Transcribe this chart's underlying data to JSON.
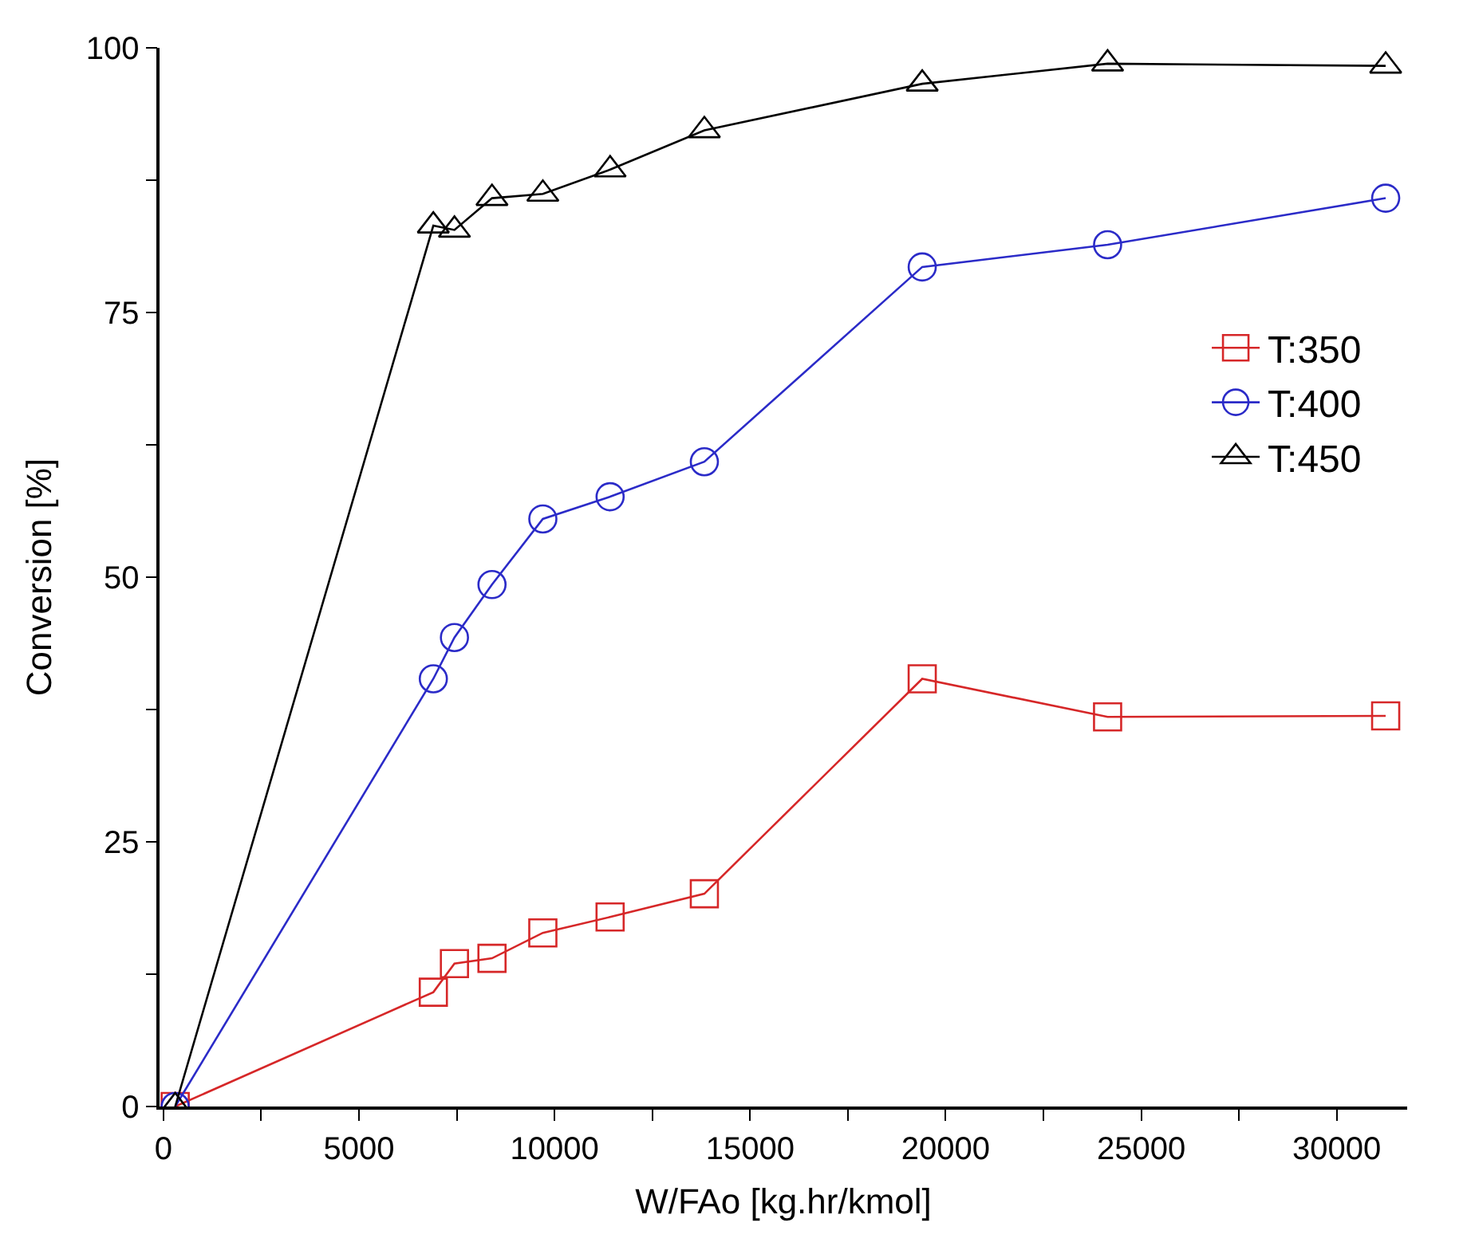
{
  "chart_data": {
    "type": "line",
    "xlabel": "W/FAo [kg.hr/kmol]",
    "ylabel": "Conversion [%]",
    "xlim": [
      -100,
      31800
    ],
    "ylim": [
      0,
      100
    ],
    "xticks": [
      0,
      {
        "value": 2500,
        "label": null
      },
      5000,
      {
        "value": 7500,
        "label": null
      },
      10000,
      {
        "value": 12500,
        "label": null
      },
      15000,
      {
        "value": 17500,
        "label": null
      },
      20000,
      {
        "value": 22500,
        "label": null
      },
      25000,
      {
        "value": 27500,
        "label": null
      },
      30000
    ],
    "yticks": [
      0,
      {
        "value": 12.5,
        "label": null
      },
      25,
      {
        "value": 37.5,
        "label": null
      },
      50,
      {
        "value": 62.5,
        "label": null
      },
      75,
      {
        "value": 87.5,
        "label": null
      },
      100
    ],
    "x": [
      300,
      6900,
      7440,
      8400,
      9700,
      11420,
      13830,
      19400,
      24140,
      31250
    ],
    "series": [
      {
        "name": "T:350",
        "color": "#d62728",
        "marker": "square",
        "values": [
          0,
          10.8,
          13.5,
          14.0,
          16.4,
          17.9,
          20.1,
          40.4,
          36.8,
          36.9
        ]
      },
      {
        "name": "T:400",
        "color": "#2b2bc8",
        "marker": "circle",
        "values": [
          0,
          40.4,
          44.3,
          49.3,
          55.5,
          57.6,
          60.9,
          79.3,
          81.4,
          85.8
        ]
      },
      {
        "name": "T:450",
        "color": "#000000",
        "marker": "triangle",
        "values": [
          0,
          83.2,
          82.8,
          85.8,
          86.2,
          88.5,
          92.2,
          96.6,
          98.5,
          98.3
        ]
      }
    ],
    "legend": "right",
    "line_style": "solid"
  }
}
